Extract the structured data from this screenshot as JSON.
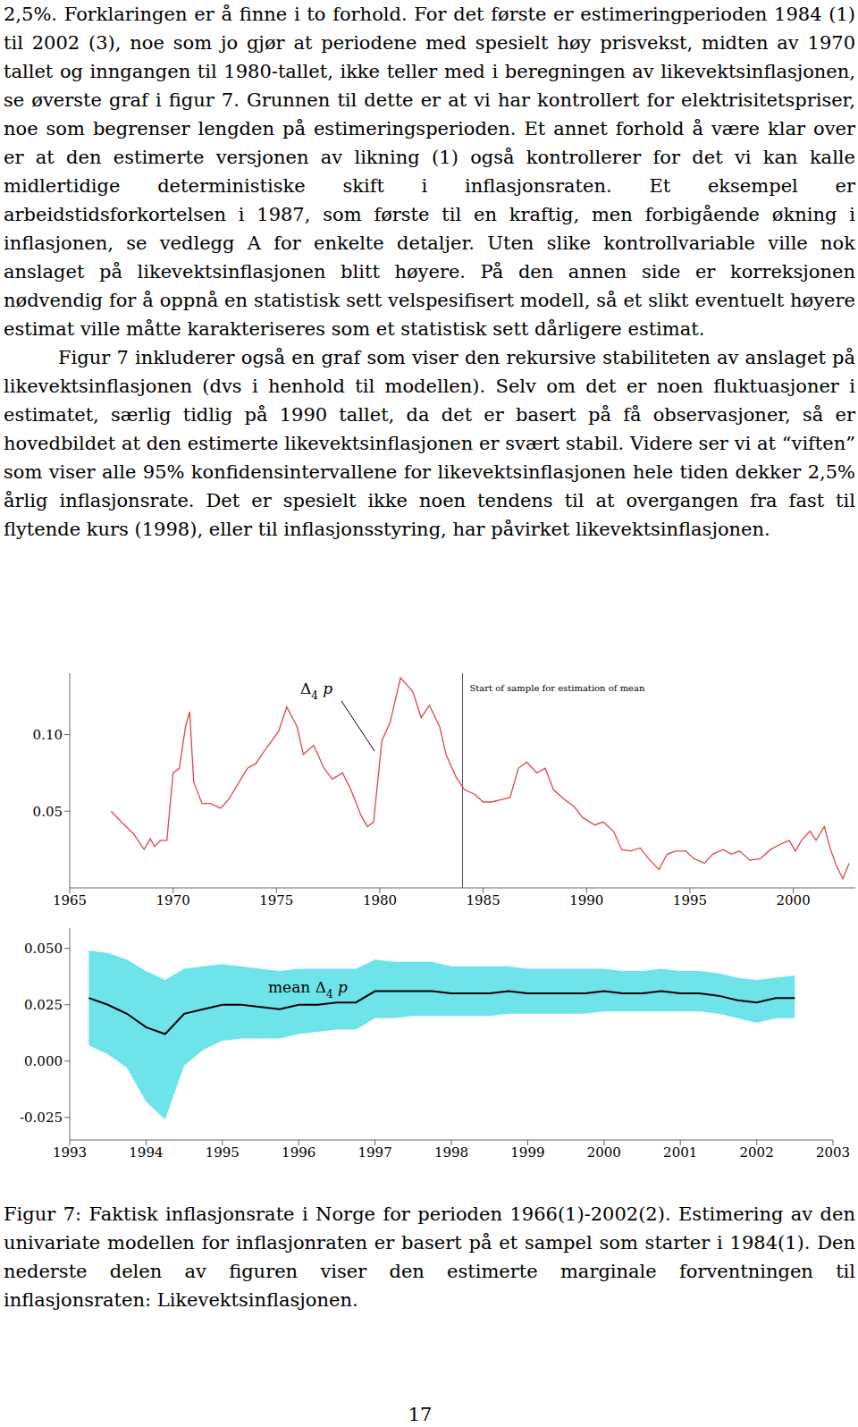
{
  "paragraphs": [
    {
      "indent": false,
      "text": "2,5%. Forklaringen er å finne i to forhold. For det første er estimeringperioden 1984 (1) til 2002 (3), noe som jo gjør at periodene med spesielt høy prisvekst, midten av 1970 tallet og inngangen til 1980-tallet, ikke teller med i beregningen av likevektsinflasjonen, se øverste graf i figur 7. Grunnen til dette er at vi har kontrollert for elektrisitetspriser, noe som begrenser lengden på estimeringsperioden. Et annet forhold å være klar over er at den estimerte versjonen av likning (1) også kontrollerer for det vi kan kalle midlertidige deterministiske skift i inflasjonsraten. Et eksempel er arbeidstidsforkortelsen i 1987, som første til en kraftig, men forbigående økning i inflasjonen, se vedlegg A for enkelte detaljer. Uten slike kontrollvariable ville nok anslaget på likevektsinflasjonen blitt høyere. På den annen side er korreksjonen nødvendig for å oppnå en statistisk sett velspesifisert modell, så et slikt eventuelt høyere estimat ville måtte karakteriseres som et statistisk sett dårligere estimat."
    },
    {
      "indent": true,
      "text": "Figur 7 inkluderer også en graf som viser den rekursive stabiliteten av anslaget på likevektsinflasjonen (dvs i henhold til modellen). Selv om det er noen fluktuasjoner i estimatet, særlig tidlig på 1990 tallet, da det er basert på få observasjoner, så er hovedbildet at den estimerte likevektsinflasjonen er svært stabil. Videre ser vi at “viften” som viser alle 95% konfidensintervallene for likevektsinflasjonen hele tiden dekker 2,5% årlig inflasjonsrate. Det er spesielt ikke noen tendens til at overgangen fra fast til flytende kurs (1998), eller til inflasjonsstyring, har påvirket likevektsinflasjonen."
    }
  ],
  "chart_data": [
    {
      "type": "line",
      "label": {
        "text": "Δ",
        "subscript": "4",
        "after": " p"
      },
      "reference_line": {
        "x": 1984,
        "label": "Start of sample for estimation of mean"
      },
      "x": [
        1967.0,
        1967.5,
        1968.1,
        1968.6,
        1968.9,
        1969.1,
        1969.4,
        1969.7,
        1970.0,
        1970.3,
        1970.6,
        1970.8,
        1971.0,
        1971.4,
        1971.8,
        1972.3,
        1972.7,
        1973.2,
        1973.6,
        1974.0,
        1974.5,
        1975.1,
        1975.5,
        1976.0,
        1976.3,
        1976.8,
        1977.3,
        1977.7,
        1978.2,
        1978.6,
        1979.1,
        1979.4,
        1979.7,
        1980.1,
        1980.5,
        1981.0,
        1981.6,
        1982.0,
        1982.4,
        1982.9,
        1983.2,
        1983.7,
        1984.1,
        1984.6,
        1985.0,
        1985.4,
        1986.0,
        1986.3,
        1986.7,
        1987.1,
        1987.6,
        1988.0,
        1988.4,
        1988.9,
        1989.4,
        1989.8,
        1990.4,
        1990.8,
        1991.3,
        1991.7,
        1992.1,
        1992.6,
        1993.0,
        1993.5,
        1993.9,
        1994.3,
        1994.8,
        1995.2,
        1995.7,
        1996.1,
        1996.6,
        1997.0,
        1997.4,
        1997.9,
        1998.4,
        1998.9,
        1999.3,
        1999.8,
        2000.1,
        2000.4,
        2000.8,
        2001.1,
        2001.5,
        2001.8,
        2002.1,
        2002.4,
        2002.7
      ],
      "values": [
        0.05,
        0.043,
        0.035,
        0.025,
        0.032,
        0.027,
        0.031,
        0.031,
        0.075,
        0.078,
        0.105,
        0.115,
        0.069,
        0.055,
        0.055,
        0.052,
        0.058,
        0.069,
        0.078,
        0.081,
        0.091,
        0.102,
        0.118,
        0.105,
        0.087,
        0.093,
        0.078,
        0.071,
        0.075,
        0.064,
        0.047,
        0.04,
        0.043,
        0.096,
        0.108,
        0.137,
        0.128,
        0.111,
        0.119,
        0.105,
        0.087,
        0.072,
        0.064,
        0.061,
        0.056,
        0.056,
        0.058,
        0.059,
        0.078,
        0.082,
        0.075,
        0.078,
        0.064,
        0.058,
        0.053,
        0.046,
        0.041,
        0.043,
        0.037,
        0.025,
        0.024,
        0.026,
        0.019,
        0.012,
        0.022,
        0.024,
        0.024,
        0.019,
        0.016,
        0.022,
        0.025,
        0.022,
        0.024,
        0.018,
        0.019,
        0.025,
        0.028,
        0.031,
        0.024,
        0.031,
        0.037,
        0.031,
        0.04,
        0.025,
        0.014,
        0.006,
        0.016
      ],
      "color": "#e0454a",
      "xlim": [
        1965,
        2003
      ],
      "xticks": [
        1965,
        1970,
        1975,
        1980,
        1985,
        1990,
        1995,
        2000
      ],
      "ylim": [
        0,
        0.14
      ],
      "yticks": [
        0.05,
        {
          "value": 0.1,
          "label": "0.10"
        }
      ],
      "grid": false
    },
    {
      "type": "line",
      "label": {
        "text": "mean Δ",
        "subscript": "4",
        "after": " p"
      },
      "x": [
        1993.25,
        1993.5,
        1993.75,
        1994.0,
        1994.25,
        1994.5,
        1994.75,
        1995.0,
        1995.25,
        1995.5,
        1995.75,
        1996.0,
        1996.25,
        1996.5,
        1996.75,
        1997.0,
        1997.25,
        1997.5,
        1997.75,
        1998.0,
        1998.25,
        1998.5,
        1998.75,
        1999.0,
        1999.25,
        1999.5,
        1999.75,
        2000.0,
        2000.25,
        2000.5,
        2000.75,
        2001.0,
        2001.25,
        2001.5,
        2001.75,
        2002.0,
        2002.25,
        2002.5
      ],
      "series": [
        {
          "type": "range",
          "color": "#6fe3ea",
          "lower": [
            0.007,
            0.003,
            -0.003,
            -0.018,
            -0.026,
            -0.002,
            0.005,
            0.009,
            0.01,
            0.01,
            0.01,
            0.012,
            0.013,
            0.014,
            0.014,
            0.019,
            0.019,
            0.02,
            0.02,
            0.02,
            0.02,
            0.02,
            0.021,
            0.021,
            0.021,
            0.021,
            0.021,
            0.022,
            0.022,
            0.022,
            0.022,
            0.022,
            0.022,
            0.021,
            0.019,
            0.017,
            0.019,
            0.019
          ],
          "upper": [
            0.049,
            0.048,
            0.045,
            0.04,
            0.036,
            0.041,
            0.042,
            0.043,
            0.042,
            0.041,
            0.04,
            0.041,
            0.041,
            0.041,
            0.041,
            0.045,
            0.044,
            0.044,
            0.044,
            0.042,
            0.042,
            0.042,
            0.042,
            0.041,
            0.041,
            0.041,
            0.041,
            0.041,
            0.04,
            0.04,
            0.041,
            0.04,
            0.04,
            0.039,
            0.037,
            0.036,
            0.037,
            0.038
          ]
        },
        {
          "type": "line",
          "color": "#000000",
          "values": [
            0.028,
            0.025,
            0.021,
            0.015,
            0.012,
            0.021,
            0.023,
            0.025,
            0.025,
            0.024,
            0.023,
            0.025,
            0.025,
            0.026,
            0.026,
            0.031,
            0.031,
            0.031,
            0.031,
            0.03,
            0.03,
            0.03,
            0.031,
            0.03,
            0.03,
            0.03,
            0.03,
            0.031,
            0.03,
            0.03,
            0.031,
            0.03,
            0.03,
            0.029,
            0.027,
            0.026,
            0.028,
            0.028
          ]
        }
      ],
      "xlim": [
        1993,
        2003
      ],
      "xticks": [
        1993,
        1994,
        1995,
        1996,
        1997,
        1998,
        1999,
        2000,
        2001,
        2002,
        2003
      ],
      "ylim": [
        -0.035,
        0.059
      ],
      "yticks": [
        {
          "value": 0.05,
          "label": "0.050"
        },
        0.025,
        {
          "value": 0,
          "label": "0.000"
        },
        -0.025
      ],
      "grid": false
    }
  ],
  "caption": "Figur 7: Faktisk inflasjonsrate i Norge for perioden 1966(1)-2002(2). Estimering av den univariate modellen for inflasjonraten er basert på et sampel som starter i 1984(1). Den nederste delen av figuren viser den estimerte marginale forventningen til inflasjonsraten: Likevektsinflasjonen.",
  "page_number": "17"
}
